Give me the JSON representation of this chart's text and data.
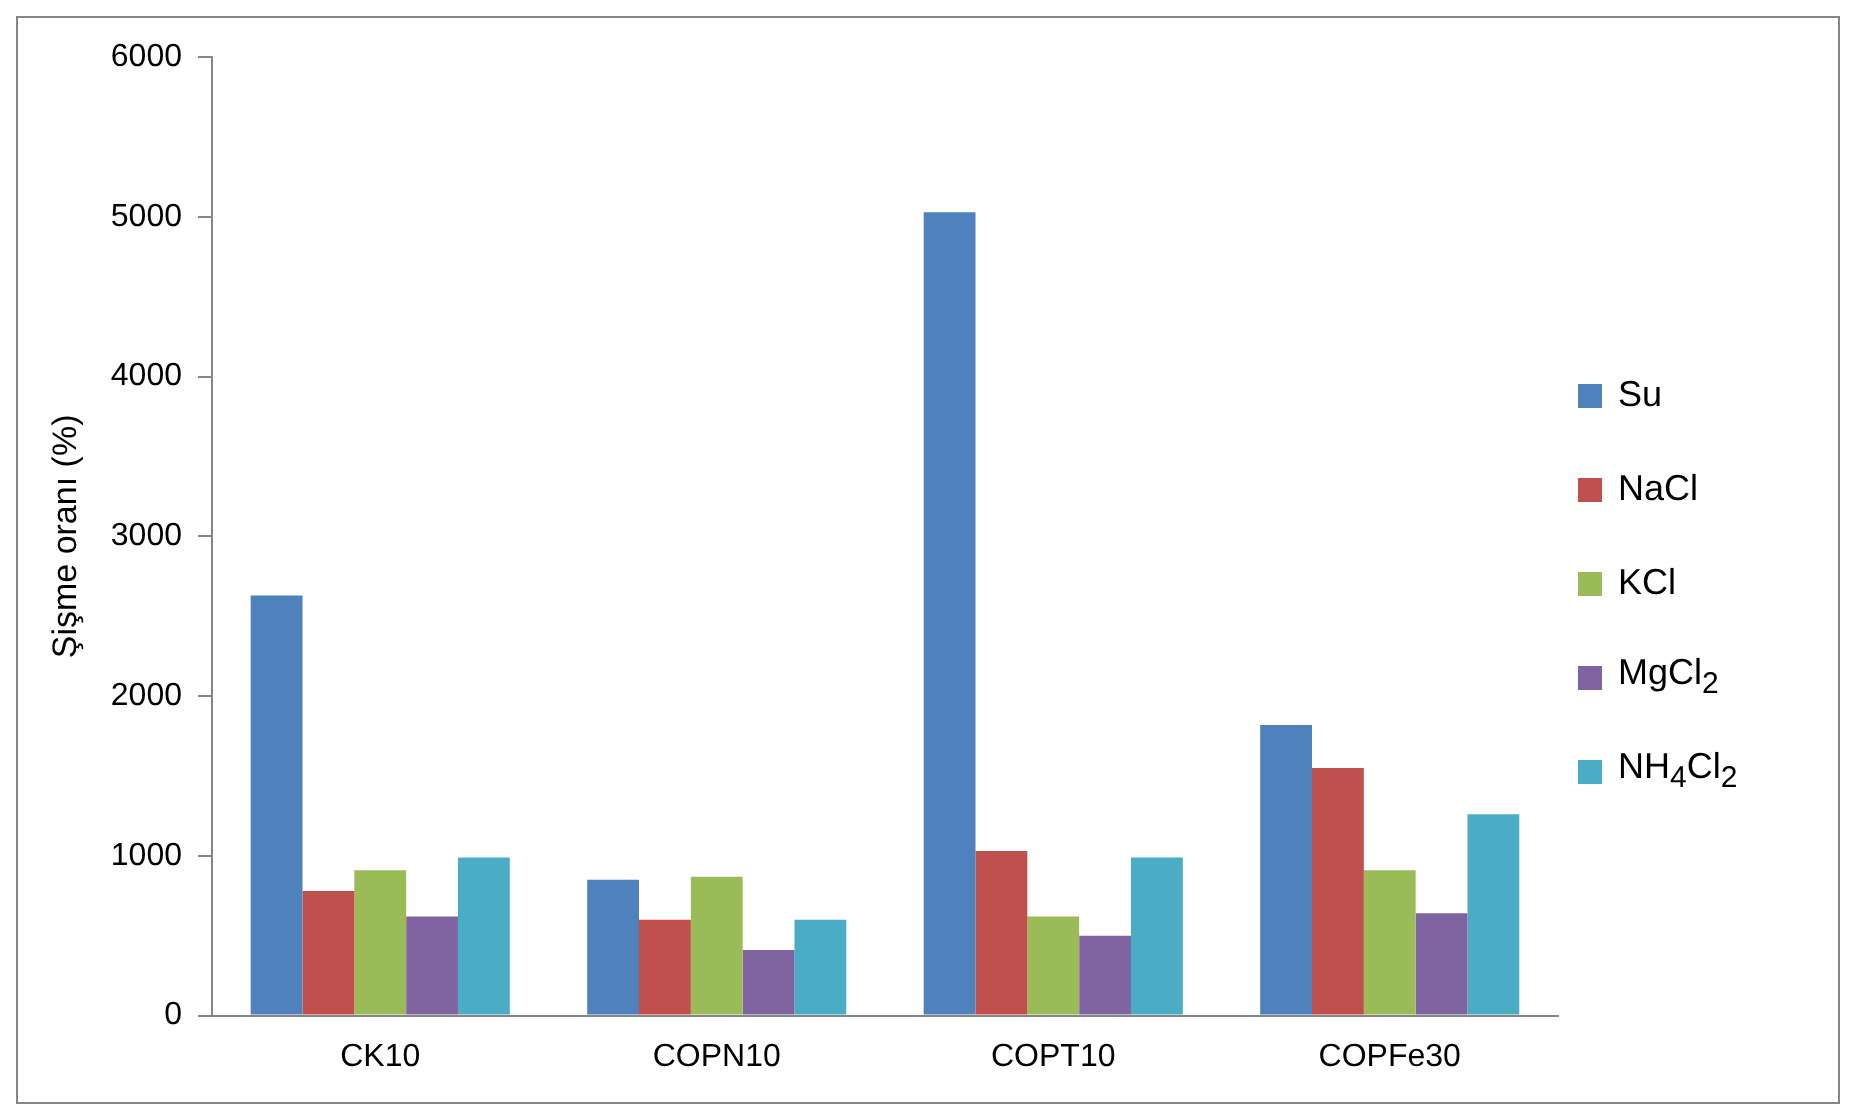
{
  "chart_data": {
    "type": "bar",
    "ylabel": "Şişme oranı (%)",
    "categories": [
      "CK10",
      "COPN10",
      "COPT10",
      "COPFe30"
    ],
    "series": [
      {
        "name": "Su",
        "color": "#4f81bd",
        "values": [
          2630,
          850,
          5030,
          1820
        ]
      },
      {
        "name": "NaCl",
        "color": "#c0504d",
        "values": [
          780,
          600,
          1030,
          1550
        ]
      },
      {
        "name": "KCl",
        "color": "#9bbb59",
        "values": [
          910,
          870,
          620,
          910
        ]
      },
      {
        "name": "MgCl$_{2}$",
        "color": "#8064a2",
        "values": [
          620,
          410,
          500,
          640
        ]
      },
      {
        "name": "NH$_{4}$Cl$_{2}$",
        "color": "#4bacc6",
        "values": [
          990,
          600,
          990,
          1260
        ]
      }
    ],
    "ylim": [
      0,
      6000
    ],
    "yticks": [
      0,
      1000,
      2000,
      3000,
      4000,
      5000,
      6000
    ],
    "grid": false,
    "legend": "right"
  }
}
